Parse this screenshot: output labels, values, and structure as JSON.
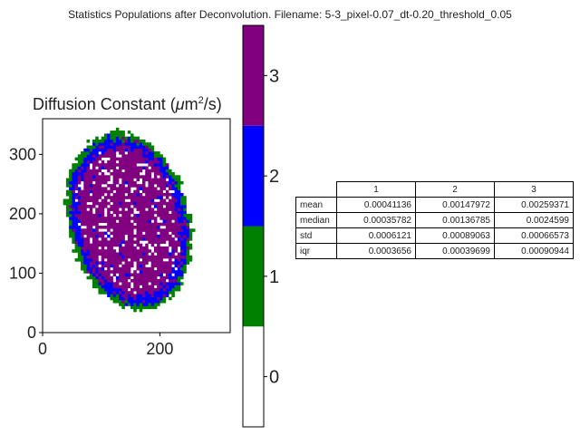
{
  "title": "Statistics Populations after Deconvolution. Filename: 5-3_pixel-0.07_dt-0.20_threshold_0.05",
  "heatmap": {
    "title_prefix": "Diffusion Constant (",
    "title_mu": "μ",
    "title_unit": "m",
    "title_exp": "2",
    "title_suffix": "/s)"
  },
  "chart_data": {
    "type": "heatmap",
    "title": "Diffusion Constant (μm²/s)",
    "xlim": [
      0,
      320
    ],
    "ylim": [
      0,
      360
    ],
    "xticks": [
      0,
      200
    ],
    "yticks": [
      0,
      100,
      200,
      300
    ],
    "region": {
      "center": [
        145,
        185
      ],
      "outer_radii": [
        100,
        150
      ],
      "description_levels": "outer rim population 1 (green), inner ring population 2 (blue), core population 3 (purple) with white voids (0)"
    },
    "colorbar": {
      "levels": [
        0,
        1,
        2,
        3
      ],
      "tick_labels": [
        "0",
        "1",
        "2",
        "3"
      ],
      "colors": [
        "#ffffff",
        "#008000",
        "#0000ff",
        "#800080"
      ],
      "range": [
        0,
        4
      ]
    }
  },
  "table": {
    "columns": [
      "1",
      "2",
      "3"
    ],
    "rows": [
      {
        "label": "mean",
        "values": [
          "0.00041136",
          "0.00147972",
          "0.00259371"
        ]
      },
      {
        "label": "median",
        "values": [
          "0.00035782",
          "0.00136785",
          "0.0024599"
        ]
      },
      {
        "label": "std",
        "values": [
          "0.0006121",
          "0.00089063",
          "0.00066573"
        ]
      },
      {
        "label": "iqr",
        "values": [
          "0.0003656",
          "0.00039699",
          "0.00090944"
        ]
      }
    ]
  }
}
